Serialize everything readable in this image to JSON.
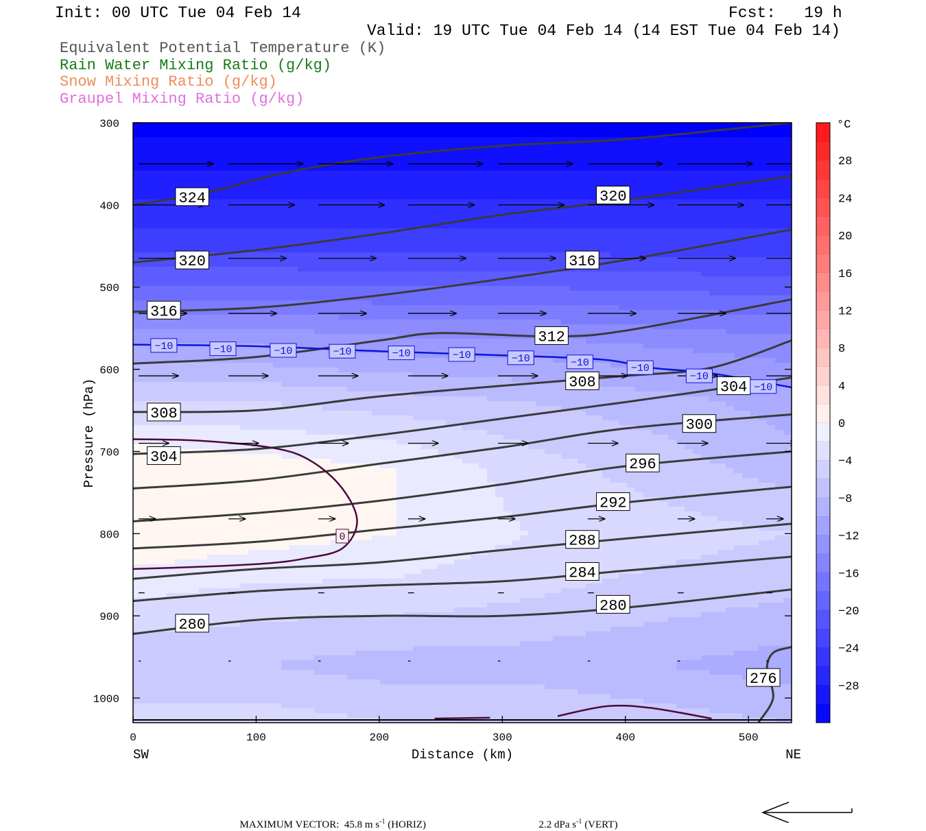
{
  "header": {
    "init": "Init: 00 UTC Tue 04 Feb 14",
    "fcst": "Fcst:   19 h",
    "valid": "Valid: 19 UTC Tue 04 Feb 14 (14 EST Tue 04 Feb 14)"
  },
  "legend": [
    {
      "label": "Equivalent Potential Temperature (K)",
      "color": "#555555"
    },
    {
      "label": "Rain Water Mixing Ratio (g/kg)",
      "color": "#1a7a1a"
    },
    {
      "label": "Snow Mixing Ratio (g/kg)",
      "color": "#f08c5a"
    },
    {
      "label": "Graupel Mixing Ratio (g/kg)",
      "color": "#e070e0"
    }
  ],
  "footer": {
    "max_vector": "MAXIMUM VECTOR:  45.8 m s",
    "horiz": " (HORIZ)",
    "vert": "2.2 dPa s",
    "vert_unit": " (VERT)",
    "exp": "-1"
  },
  "chart_data": {
    "type": "heatmap",
    "title": "",
    "xlabel": "Distance (km)",
    "ylabel": "Pressure (hPa)",
    "xlim": [
      0,
      535
    ],
    "ylim": [
      1030,
      300
    ],
    "x_ticks": [
      "0",
      "100",
      "200",
      "300",
      "400",
      "500"
    ],
    "y_ticks": [
      "300",
      "400",
      "500",
      "600",
      "700",
      "800",
      "900",
      "1000"
    ],
    "x_end_labels": {
      "left": "SW",
      "right": "NE"
    },
    "colorbar": {
      "unit": "°C",
      "labels": [
        "28",
        "24",
        "20",
        "16",
        "12",
        "8",
        "4",
        "0",
        "−4",
        "−8",
        "−12",
        "−16",
        "−20",
        "−24",
        "−28"
      ],
      "min": -32,
      "max": 32,
      "step": 2
    },
    "temperature_field_rows": [
      {
        "p": 300,
        "t": [
          -32,
          -32,
          -32,
          -32,
          -32,
          -32
        ]
      },
      {
        "p": 450,
        "t": [
          -24,
          -24,
          -24,
          -24,
          -24,
          -24
        ]
      },
      {
        "p": 560,
        "t": [
          -12,
          -12,
          -13,
          -13,
          -14,
          -15
        ]
      },
      {
        "p": 640,
        "t": [
          -5,
          -5,
          -6,
          -7,
          -8,
          -10
        ]
      },
      {
        "p": 720,
        "t": [
          1,
          0,
          -1,
          -4,
          -6,
          -8
        ]
      },
      {
        "p": 800,
        "t": [
          1,
          0,
          -1,
          -3,
          -4,
          -5
        ]
      },
      {
        "p": 880,
        "t": [
          -3,
          -4,
          -4,
          -5,
          -6,
          -7
        ]
      },
      {
        "p": 960,
        "t": [
          -7,
          -7,
          -8,
          -8,
          -9,
          -10
        ]
      },
      {
        "p": 1030,
        "t": [
          -4,
          -4,
          -5,
          -5,
          -6,
          -7
        ]
      }
    ],
    "theta_e_contours": [
      {
        "value": "324",
        "pts": [
          [
            0,
            400
          ],
          [
            60,
            385
          ],
          [
            120,
            362
          ],
          [
            200,
            342
          ],
          [
            300,
            328
          ],
          [
            400,
            320
          ],
          [
            535,
            300
          ]
        ]
      },
      {
        "value": "320",
        "pts": [
          [
            0,
            470
          ],
          [
            100,
            455
          ],
          [
            200,
            435
          ],
          [
            300,
            412
          ],
          [
            400,
            394
          ],
          [
            535,
            365
          ]
        ]
      },
      {
        "value": "316",
        "pts": [
          [
            0,
            530
          ],
          [
            100,
            525
          ],
          [
            200,
            510
          ],
          [
            300,
            490
          ],
          [
            400,
            467
          ],
          [
            535,
            430
          ]
        ]
      },
      {
        "value": "312",
        "pts": [
          [
            0,
            593
          ],
          [
            100,
            585
          ],
          [
            200,
            565
          ],
          [
            250,
            556
          ],
          [
            340,
            560
          ],
          [
            400,
            553
          ],
          [
            535,
            515
          ]
        ]
      },
      {
        "value": "308",
        "pts": [
          [
            0,
            652
          ],
          [
            100,
            650
          ],
          [
            200,
            633
          ],
          [
            300,
            620
          ],
          [
            400,
            608
          ],
          [
            470,
            598
          ],
          [
            535,
            565
          ]
        ]
      },
      {
        "value": "304",
        "pts": [
          [
            0,
            703
          ],
          [
            100,
            697
          ],
          [
            200,
            680
          ],
          [
            300,
            660
          ],
          [
            400,
            640
          ],
          [
            470,
            625
          ],
          [
            535,
            610
          ]
        ]
      },
      {
        "value": "300",
        "pts": [
          [
            0,
            745
          ],
          [
            100,
            735
          ],
          [
            200,
            715
          ],
          [
            300,
            695
          ],
          [
            400,
            672
          ],
          [
            535,
            655
          ]
        ]
      },
      {
        "value": "296",
        "pts": [
          [
            0,
            785
          ],
          [
            100,
            775
          ],
          [
            200,
            760
          ],
          [
            300,
            740
          ],
          [
            400,
            718
          ],
          [
            535,
            700
          ]
        ]
      },
      {
        "value": "292",
        "pts": [
          [
            0,
            818
          ],
          [
            100,
            810
          ],
          [
            200,
            795
          ],
          [
            300,
            780
          ],
          [
            400,
            762
          ],
          [
            535,
            743
          ]
        ]
      },
      {
        "value": "288",
        "pts": [
          [
            0,
            855
          ],
          [
            100,
            843
          ],
          [
            200,
            835
          ],
          [
            300,
            820
          ],
          [
            400,
            806
          ],
          [
            535,
            788
          ]
        ]
      },
      {
        "value": "284",
        "pts": [
          [
            0,
            882
          ],
          [
            100,
            870
          ],
          [
            200,
            863
          ],
          [
            300,
            858
          ],
          [
            400,
            845
          ],
          [
            535,
            828
          ]
        ]
      },
      {
        "value": "280",
        "pts": [
          [
            0,
            922
          ],
          [
            100,
            905
          ],
          [
            200,
            900
          ],
          [
            300,
            900
          ],
          [
            400,
            890
          ],
          [
            535,
            868
          ]
        ]
      },
      {
        "value": "276",
        "pts": [
          [
            508,
            1030
          ],
          [
            520,
            1000
          ],
          [
            515,
            965
          ],
          [
            520,
            945
          ],
          [
            535,
            938
          ]
        ]
      }
    ],
    "theta_e_labels": [
      {
        "text": "324",
        "x": 48,
        "p": 390
      },
      {
        "text": "320",
        "x": 390,
        "p": 388
      },
      {
        "text": "320",
        "x": 48,
        "p": 467
      },
      {
        "text": "316",
        "x": 365,
        "p": 467
      },
      {
        "text": "316",
        "x": 25,
        "p": 528
      },
      {
        "text": "312",
        "x": 340,
        "p": 559
      },
      {
        "text": "308",
        "x": 365,
        "p": 614
      },
      {
        "text": "304",
        "x": 488,
        "p": 620
      },
      {
        "text": "308",
        "x": 25,
        "p": 652
      },
      {
        "text": "300",
        "x": 460,
        "p": 666
      },
      {
        "text": "304",
        "x": 25,
        "p": 705
      },
      {
        "text": "296",
        "x": 414,
        "p": 714
      },
      {
        "text": "292",
        "x": 390,
        "p": 761
      },
      {
        "text": "288",
        "x": 365,
        "p": 807
      },
      {
        "text": "284",
        "x": 365,
        "p": 846
      },
      {
        "text": "280",
        "x": 390,
        "p": 886
      },
      {
        "text": "280",
        "x": 48,
        "p": 909
      },
      {
        "text": "276",
        "x": 512,
        "p": 975
      }
    ],
    "isotherm_minus10": {
      "pts": [
        [
          0,
          570
        ],
        [
          100,
          572
        ],
        [
          200,
          578
        ],
        [
          300,
          583
        ],
        [
          380,
          588
        ],
        [
          420,
          598
        ],
        [
          470,
          605
        ],
        [
          535,
          622
        ]
      ],
      "labels": [
        {
          "text": "−10",
          "x": 25,
          "p": 571
        },
        {
          "text": "−10",
          "x": 73,
          "p": 575
        },
        {
          "text": "−10",
          "x": 122,
          "p": 577
        },
        {
          "text": "−10",
          "x": 170,
          "p": 578
        },
        {
          "text": "−10",
          "x": 218,
          "p": 580
        },
        {
          "text": "−10",
          "x": 267,
          "p": 582
        },
        {
          "text": "−10",
          "x": 315,
          "p": 586
        },
        {
          "text": "−10",
          "x": 363,
          "p": 591
        },
        {
          "text": "−10",
          "x": 412,
          "p": 598
        },
        {
          "text": "−10",
          "x": 460,
          "p": 608
        },
        {
          "text": "−10",
          "x": 512,
          "p": 621
        }
      ]
    },
    "isotherm_0": {
      "label": "0",
      "label_pos": {
        "x": 170,
        "p": 803
      },
      "pts": [
        [
          0,
          685
        ],
        [
          55,
          687
        ],
        [
          115,
          696
        ],
        [
          145,
          712
        ],
        [
          170,
          745
        ],
        [
          182,
          785
        ],
        [
          170,
          818
        ],
        [
          140,
          830
        ],
        [
          110,
          836
        ],
        [
          60,
          840
        ],
        [
          0,
          843
        ]
      ]
    },
    "surface_hydrometeor_contours": [
      {
        "pts": [
          [
            345,
            1022
          ],
          [
            385,
            1010
          ],
          [
            420,
            1012
          ],
          [
            470,
            1025
          ]
        ]
      },
      {
        "pts": [
          [
            245,
            1025
          ],
          [
            290,
            1024
          ]
        ]
      }
    ],
    "wind_vectors": [
      {
        "p": 350,
        "len": 62
      },
      {
        "p": 400,
        "len": 55
      },
      {
        "p": 465,
        "len": 48
      },
      {
        "p": 532,
        "len": 40
      },
      {
        "p": 608,
        "len": 33
      },
      {
        "p": 690,
        "len": 25
      },
      {
        "p": 782,
        "len": 14
      },
      {
        "p": 872,
        "len": 5
      },
      {
        "p": 955,
        "len": 2
      }
    ],
    "wind_x_positions": [
      0,
      73,
      146,
      219,
      292,
      365,
      438,
      510
    ]
  }
}
